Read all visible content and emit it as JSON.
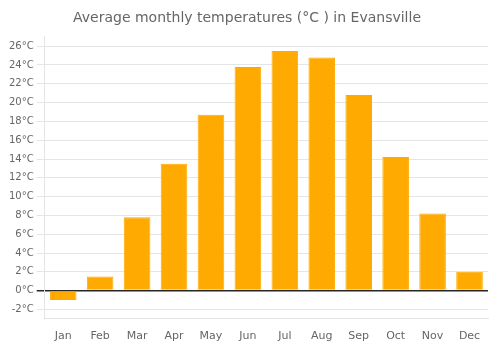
{
  "chart_data": {
    "type": "bar",
    "title": "Average monthly temperatures (°C ) in Evansville",
    "categories": [
      "Jan",
      "Feb",
      "Mar",
      "Apr",
      "May",
      "Jun",
      "Jul",
      "Aug",
      "Sep",
      "Oct",
      "Nov",
      "Dec"
    ],
    "values": [
      -1.0,
      1.5,
      7.8,
      13.5,
      18.7,
      23.8,
      25.5,
      24.8,
      20.8,
      14.2,
      8.2,
      2.0
    ],
    "color": "#FFAA00",
    "ylim": [
      -3,
      27
    ],
    "yticks": [
      {
        "value": -2,
        "label": "-2°C"
      },
      {
        "value": 0,
        "label": "0°C"
      },
      {
        "value": 2,
        "label": "2°C"
      },
      {
        "value": 4,
        "label": "4°C"
      },
      {
        "value": 6,
        "label": "6°C"
      },
      {
        "value": 8,
        "label": "8°C"
      },
      {
        "value": 10,
        "label": "10°C"
      },
      {
        "value": 12,
        "label": "12°C"
      },
      {
        "value": 14,
        "label": "14°C"
      },
      {
        "value": 16,
        "label": "16°C"
      },
      {
        "value": 18,
        "label": "18°C"
      },
      {
        "value": 20,
        "label": "20°C"
      },
      {
        "value": 22,
        "label": "22°C"
      },
      {
        "value": 24,
        "label": "24°C"
      },
      {
        "value": 26,
        "label": "26°C"
      }
    ],
    "grid": true
  }
}
